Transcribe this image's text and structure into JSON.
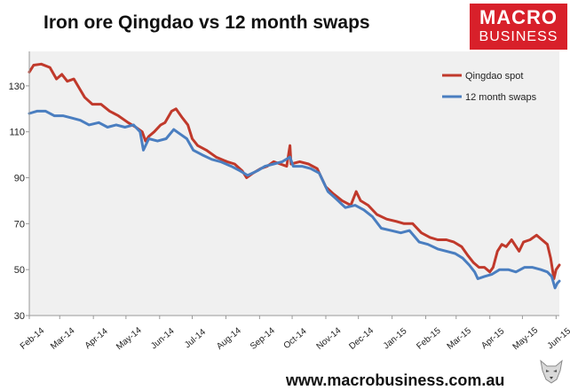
{
  "title": "Iron ore Qingdao vs 12 month swaps",
  "logo": {
    "line1": "MACRO",
    "line2": "BUSINESS"
  },
  "website": "www.macrobusiness.com.au",
  "chart_data": {
    "type": "line",
    "title": "Iron ore Qingdao vs 12 month swaps",
    "xlabel": "",
    "ylabel": "",
    "ylim": [
      30,
      145
    ],
    "yticks": [
      30,
      50,
      70,
      90,
      110,
      130
    ],
    "xlim": [
      "2014-02-01",
      "2015-06-04"
    ],
    "xticks": [
      {
        "label": "Feb-14",
        "date": "2014-02-01"
      },
      {
        "label": "Mar-14",
        "date": "2014-03-01"
      },
      {
        "label": "Apr-14",
        "date": "2014-04-01"
      },
      {
        "label": "May-14",
        "date": "2014-05-01"
      },
      {
        "label": "Jun-14",
        "date": "2014-06-01"
      },
      {
        "label": "Jul-14",
        "date": "2014-07-01"
      },
      {
        "label": "Aug-14",
        "date": "2014-08-01"
      },
      {
        "label": "Sep-14",
        "date": "2014-09-01"
      },
      {
        "label": "Oct-14",
        "date": "2014-10-01"
      },
      {
        "label": "Nov-14",
        "date": "2014-11-01"
      },
      {
        "label": "Dec-14",
        "date": "2014-12-01"
      },
      {
        "label": "Jan-15",
        "date": "2015-01-01"
      },
      {
        "label": "Feb-15",
        "date": "2015-02-01"
      },
      {
        "label": "Mar-15",
        "date": "2015-03-01"
      },
      {
        "label": "Apr-15",
        "date": "2015-04-01"
      },
      {
        "label": "May-15",
        "date": "2015-05-01"
      },
      {
        "label": "Jun-15",
        "date": "2015-06-01"
      }
    ],
    "grid": false,
    "legend": "top-right",
    "series": [
      {
        "name": "Qingdao spot",
        "color": "#c0392b",
        "points": [
          [
            "2014-02-01",
            136
          ],
          [
            "2014-02-05",
            139
          ],
          [
            "2014-02-12",
            139.5
          ],
          [
            "2014-02-20",
            138
          ],
          [
            "2014-02-26",
            133
          ],
          [
            "2014-03-03",
            135
          ],
          [
            "2014-03-08",
            132
          ],
          [
            "2014-03-14",
            133
          ],
          [
            "2014-03-19",
            129
          ],
          [
            "2014-03-24",
            125
          ],
          [
            "2014-03-31",
            122
          ],
          [
            "2014-04-08",
            122
          ],
          [
            "2014-04-16",
            119
          ],
          [
            "2014-04-24",
            117
          ],
          [
            "2014-05-03",
            114
          ],
          [
            "2014-05-10",
            112
          ],
          [
            "2014-05-16",
            110
          ],
          [
            "2014-05-19",
            106
          ],
          [
            "2014-05-22",
            108
          ],
          [
            "2014-05-27",
            110
          ],
          [
            "2014-06-02",
            113
          ],
          [
            "2014-06-06",
            114
          ],
          [
            "2014-06-12",
            119
          ],
          [
            "2014-06-16",
            120
          ],
          [
            "2014-06-22",
            116
          ],
          [
            "2014-06-27",
            113
          ],
          [
            "2014-07-01",
            107
          ],
          [
            "2014-07-06",
            104
          ],
          [
            "2014-07-14",
            102
          ],
          [
            "2014-07-23",
            99
          ],
          [
            "2014-08-02",
            97
          ],
          [
            "2014-08-09",
            96
          ],
          [
            "2014-08-16",
            93
          ],
          [
            "2014-08-20",
            90
          ],
          [
            "2014-08-26",
            92
          ],
          [
            "2014-09-02",
            94
          ],
          [
            "2014-09-08",
            95
          ],
          [
            "2014-09-14",
            97
          ],
          [
            "2014-09-20",
            96
          ],
          [
            "2014-09-26",
            95
          ],
          [
            "2014-09-29",
            104
          ],
          [
            "2014-09-30",
            96
          ],
          [
            "2014-10-08",
            97
          ],
          [
            "2014-10-16",
            96
          ],
          [
            "2014-10-24",
            94
          ],
          [
            "2014-11-01",
            86
          ],
          [
            "2014-11-08",
            83
          ],
          [
            "2014-11-16",
            80
          ],
          [
            "2014-11-24",
            78
          ],
          [
            "2014-11-29",
            84
          ],
          [
            "2014-12-03",
            80
          ],
          [
            "2014-12-10",
            78
          ],
          [
            "2014-12-18",
            74
          ],
          [
            "2014-12-27",
            72
          ],
          [
            "2015-01-05",
            71
          ],
          [
            "2015-01-12",
            70
          ],
          [
            "2015-01-20",
            70
          ],
          [
            "2015-01-28",
            66
          ],
          [
            "2015-02-05",
            64
          ],
          [
            "2015-02-12",
            63
          ],
          [
            "2015-02-20",
            63
          ],
          [
            "2015-02-27",
            62
          ],
          [
            "2015-03-06",
            60
          ],
          [
            "2015-03-12",
            56
          ],
          [
            "2015-03-17",
            53
          ],
          [
            "2015-03-22",
            51
          ],
          [
            "2015-03-27",
            51
          ],
          [
            "2015-04-01",
            49
          ],
          [
            "2015-04-04",
            51
          ],
          [
            "2015-04-08",
            58
          ],
          [
            "2015-04-12",
            61
          ],
          [
            "2015-04-16",
            60
          ],
          [
            "2015-04-21",
            63
          ],
          [
            "2015-04-28",
            58
          ],
          [
            "2015-05-02",
            62
          ],
          [
            "2015-05-08",
            63
          ],
          [
            "2015-05-14",
            65
          ],
          [
            "2015-05-19",
            63
          ],
          [
            "2015-05-24",
            61
          ],
          [
            "2015-05-27",
            55
          ],
          [
            "2015-05-30",
            46
          ],
          [
            "2015-06-01",
            50
          ],
          [
            "2015-06-04",
            52
          ]
        ]
      },
      {
        "name": "12 month swaps",
        "color": "#4a7ec0",
        "points": [
          [
            "2014-02-01",
            118
          ],
          [
            "2014-02-08",
            119
          ],
          [
            "2014-02-16",
            119
          ],
          [
            "2014-02-24",
            117
          ],
          [
            "2014-03-04",
            117
          ],
          [
            "2014-03-12",
            116
          ],
          [
            "2014-03-20",
            115
          ],
          [
            "2014-03-28",
            113
          ],
          [
            "2014-04-06",
            114
          ],
          [
            "2014-04-14",
            112
          ],
          [
            "2014-04-22",
            113
          ],
          [
            "2014-04-30",
            112
          ],
          [
            "2014-05-08",
            113
          ],
          [
            "2014-05-14",
            110
          ],
          [
            "2014-05-17",
            102
          ],
          [
            "2014-05-22",
            107
          ],
          [
            "2014-05-30",
            106
          ],
          [
            "2014-06-07",
            107
          ],
          [
            "2014-06-14",
            111
          ],
          [
            "2014-06-20",
            109
          ],
          [
            "2014-06-26",
            107
          ],
          [
            "2014-07-02",
            102
          ],
          [
            "2014-07-10",
            100
          ],
          [
            "2014-07-19",
            98
          ],
          [
            "2014-07-27",
            97
          ],
          [
            "2014-08-06",
            95
          ],
          [
            "2014-08-14",
            93
          ],
          [
            "2014-08-21",
            91
          ],
          [
            "2014-08-30",
            93
          ],
          [
            "2014-09-06",
            95
          ],
          [
            "2014-09-14",
            96
          ],
          [
            "2014-09-22",
            97
          ],
          [
            "2014-09-29",
            99
          ],
          [
            "2014-10-02",
            95
          ],
          [
            "2014-10-10",
            95
          ],
          [
            "2014-10-18",
            94
          ],
          [
            "2014-10-26",
            92
          ],
          [
            "2014-11-03",
            84
          ],
          [
            "2014-11-10",
            81
          ],
          [
            "2014-11-19",
            77
          ],
          [
            "2014-11-28",
            78
          ],
          [
            "2014-12-06",
            76
          ],
          [
            "2014-12-14",
            73
          ],
          [
            "2014-12-22",
            68
          ],
          [
            "2014-12-31",
            67
          ],
          [
            "2015-01-09",
            66
          ],
          [
            "2015-01-17",
            67
          ],
          [
            "2015-01-26",
            62
          ],
          [
            "2015-02-03",
            61
          ],
          [
            "2015-02-12",
            59
          ],
          [
            "2015-02-20",
            58
          ],
          [
            "2015-02-28",
            57
          ],
          [
            "2015-03-07",
            55
          ],
          [
            "2015-03-13",
            52
          ],
          [
            "2015-03-18",
            49
          ],
          [
            "2015-03-21",
            46
          ],
          [
            "2015-03-27",
            47
          ],
          [
            "2015-04-03",
            48
          ],
          [
            "2015-04-10",
            50
          ],
          [
            "2015-04-18",
            50
          ],
          [
            "2015-04-25",
            49
          ],
          [
            "2015-05-03",
            51
          ],
          [
            "2015-05-10",
            51
          ],
          [
            "2015-05-18",
            50
          ],
          [
            "2015-05-24",
            49
          ],
          [
            "2015-05-28",
            47
          ],
          [
            "2015-05-31",
            42
          ],
          [
            "2015-06-02",
            44
          ],
          [
            "2015-06-04",
            45
          ]
        ]
      }
    ]
  }
}
